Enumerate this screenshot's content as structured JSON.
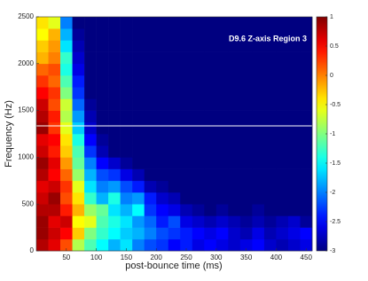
{
  "chart_data": {
    "type": "heatmap",
    "annotation": "D9.6 Z-axis Region 3",
    "xlabel": "post-bounce time (ms)",
    "ylabel": "Frequency (Hz)",
    "colormap": "jet",
    "xlim": [
      0,
      460
    ],
    "xticks": [
      50,
      100,
      150,
      200,
      250,
      300,
      350,
      400,
      450
    ],
    "ylim": [
      0,
      2500
    ],
    "yticks": [
      0,
      500,
      1000,
      1500,
      2000,
      2500
    ],
    "clim": [
      -3,
      1
    ],
    "cticks": [
      -3,
      -2.5,
      -2,
      -1.5,
      -1,
      -0.5,
      0,
      0.5,
      1
    ],
    "reference_line": 1335,
    "x_edges": [
      0,
      20,
      40,
      60,
      80,
      100,
      120,
      140,
      160,
      180,
      200,
      220,
      240,
      260,
      280,
      300,
      320,
      340,
      360,
      380,
      400,
      420,
      440,
      460
    ],
    "y_edges": [
      0,
      125,
      250,
      375,
      500,
      625,
      750,
      875,
      1000,
      1125,
      1250,
      1375,
      1500,
      1625,
      1750,
      1875,
      2000,
      2125,
      2250,
      2375,
      2500
    ],
    "values": [
      [
        0.8,
        0.6,
        0.2,
        -0.8,
        -1.2,
        -1.5,
        -1.8,
        -1.6,
        -2.0,
        -2.2,
        -2.3,
        -2.5,
        -2.4,
        -2.6,
        -2.5,
        -2.6,
        -2.7,
        -2.6,
        -2.5,
        -2.7,
        -2.8,
        -2.7,
        -2.6
      ],
      [
        0.9,
        0.7,
        0.5,
        -0.3,
        -1.0,
        -1.3,
        -1.5,
        -1.7,
        -1.8,
        -2.0,
        -2.2,
        -2.3,
        -2.4,
        -2.5,
        -2.6,
        -2.5,
        -2.7,
        -2.8,
        -2.6,
        -2.8,
        -2.7,
        -2.6,
        -2.5
      ],
      [
        0.9,
        0.6,
        0.7,
        -0.5,
        -0.6,
        -1.2,
        -1.4,
        -1.6,
        -1.9,
        -2.1,
        -2.4,
        -2.2,
        -2.6,
        -2.7,
        -2.8,
        -2.7,
        -2.8,
        -2.9,
        -2.8,
        -2.9,
        -2.8,
        -2.7,
        -2.9
      ],
      [
        0.8,
        0.8,
        0.4,
        -0.2,
        -0.9,
        -1.1,
        -1.6,
        -1.8,
        -1.5,
        -2.3,
        -2.5,
        -2.6,
        -2.8,
        -2.9,
        -3,
        -2.9,
        -3,
        -3,
        -2.9,
        -3,
        -3,
        -3,
        -3
      ],
      [
        0.7,
        0.9,
        0.2,
        -0.4,
        -1.3,
        -1.8,
        -1.4,
        -2.0,
        -1.9,
        -2.4,
        -2.7,
        -2.8,
        -3,
        -3,
        -3,
        -3,
        -3,
        -3,
        -3,
        -3,
        -3,
        -3,
        -3
      ],
      [
        0.6,
        0.7,
        0.3,
        -0.6,
        -1.6,
        -2.0,
        -1.9,
        -2.2,
        -2.4,
        -2.8,
        -2.9,
        -3,
        -3,
        -3,
        -3,
        -3,
        -3,
        -3,
        -3,
        -3,
        -3,
        -3,
        -3
      ],
      [
        0.8,
        0.5,
        0.1,
        -0.9,
        -1.8,
        -2.2,
        -2.3,
        -2.6,
        -2.8,
        -3,
        -3,
        -3,
        -3,
        -3,
        -3,
        -3,
        -3,
        -3,
        -3,
        -3,
        -3,
        -3,
        -3
      ],
      [
        0.9,
        0.6,
        -0.1,
        -1.1,
        -2.0,
        -2.5,
        -2.7,
        -2.9,
        -3,
        -3,
        -3,
        -3,
        -3,
        -3,
        -3,
        -3,
        -3,
        -3,
        -3,
        -3,
        -3,
        -3,
        -3
      ],
      [
        0.7,
        0.4,
        -0.3,
        -1.2,
        -2.3,
        -2.8,
        -3,
        -3,
        -3,
        -3,
        -3,
        -3,
        -3,
        -3,
        -3,
        -3,
        -3,
        -3,
        -3,
        -3,
        -3,
        -3,
        -3
      ],
      [
        0.6,
        0.5,
        -0.4,
        -1.4,
        -2.5,
        -2.9,
        -3,
        -3,
        -3,
        -3,
        -3,
        -3,
        -3,
        -3,
        -3,
        -3,
        -3,
        -3,
        -3,
        -3,
        -3,
        -3,
        -3
      ],
      [
        0.9,
        0.3,
        -0.6,
        -1.7,
        -2.7,
        -3,
        -3,
        -3,
        -3,
        -3,
        -3,
        -3,
        -3,
        -3,
        -3,
        -3,
        -3,
        -3,
        -3,
        -3,
        -3,
        -3,
        -3
      ],
      [
        0.8,
        0.4,
        -0.8,
        -1.9,
        -2.8,
        -3,
        -3,
        -3,
        -3,
        -3,
        -3,
        -3,
        -3,
        -3,
        -3,
        -3,
        -3,
        -3,
        -3,
        -3,
        -3,
        -3,
        -3
      ],
      [
        0.7,
        0.2,
        -0.7,
        -2.1,
        -2.9,
        -3,
        -3,
        -3,
        -3,
        -3,
        -3,
        -3,
        -3,
        -3,
        -3,
        -3,
        -3,
        -3,
        -3,
        -3,
        -3,
        -3,
        -3
      ],
      [
        0.5,
        0.3,
        -1.0,
        -2.3,
        -3,
        -3,
        -3,
        -3,
        -3,
        -3,
        -3,
        -3,
        -3,
        -3,
        -3,
        -3,
        -3,
        -3,
        -3,
        -3,
        -3,
        -3,
        -3
      ],
      [
        0.3,
        0.1,
        -1.2,
        -2.4,
        -3,
        -3,
        -3,
        -3,
        -3,
        -3,
        -3,
        -3,
        -3,
        -3,
        -3,
        -3,
        -3,
        -3,
        -3,
        -3,
        -3,
        -3,
        -3
      ],
      [
        0.1,
        0.2,
        -1.4,
        -2.6,
        -3,
        -3,
        -3,
        -3,
        -3,
        -3,
        -3,
        -3,
        -3,
        -3,
        -3,
        -3,
        -3,
        -3,
        -3,
        -3,
        -3,
        -3,
        -3
      ],
      [
        -0.2,
        0.0,
        -1.3,
        -2.7,
        -3,
        -3,
        -3,
        -3,
        -3,
        -3,
        -3,
        -3,
        -3,
        -3,
        -3,
        -3,
        -3,
        -3,
        -3,
        -3,
        -3,
        -3,
        -3
      ],
      [
        -0.3,
        -0.1,
        -1.6,
        -2.8,
        -3,
        -3,
        -3,
        -3,
        -3,
        -3,
        -3,
        -3,
        -3,
        -3,
        -3,
        -3,
        -3,
        -3,
        -3,
        -3,
        -3,
        -3,
        -3
      ],
      [
        -0.5,
        -0.2,
        -1.8,
        -2.9,
        -3,
        -3,
        -3,
        -3,
        -3,
        -3,
        -3,
        -3,
        -3,
        -3,
        -3,
        -3,
        -3,
        -3,
        -3,
        -3,
        -3,
        -3,
        -3
      ],
      [
        -0.4,
        -0.6,
        -2.0,
        -3,
        -3,
        -3,
        -3,
        -3,
        -3,
        -3,
        -3,
        -3,
        -3,
        -3,
        -3,
        -3,
        -3,
        -3,
        -3,
        -3,
        -3,
        -3,
        -3
      ]
    ]
  }
}
